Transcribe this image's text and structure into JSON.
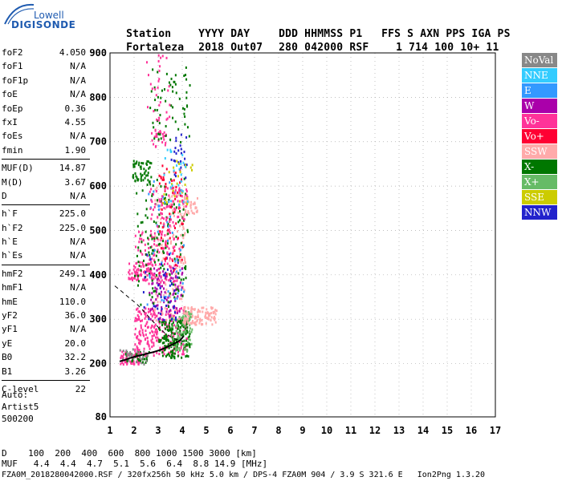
{
  "logo": {
    "top": "Lowell",
    "bottom": "DIGISONDE"
  },
  "header": {
    "row1": [
      "Station",
      "YYYY DAY",
      "DDD HHMMSS P1",
      "FFS S AXN PPS IGA PS"
    ],
    "row2": [
      "Fortaleza",
      "2018 Out07",
      "280 042000 RSF",
      "1 714 100 10+ 11"
    ]
  },
  "params": [
    {
      "label": "foF2",
      "value": "4.050"
    },
    {
      "label": "foF1",
      "value": "N/A"
    },
    {
      "label": "foF1p",
      "value": "N/A"
    },
    {
      "label": "foE",
      "value": "N/A"
    },
    {
      "label": "foEp",
      "value": "0.36"
    },
    {
      "label": "fxI",
      "value": "4.55"
    },
    {
      "label": "foEs",
      "value": "N/A"
    },
    {
      "label": "fmin",
      "value": "1.90"
    },
    {
      "label": "MUF(D)",
      "value": "14.87"
    },
    {
      "label": "M(D)",
      "value": "3.67"
    },
    {
      "label": "D",
      "value": "N/A"
    },
    {
      "label": "h`F",
      "value": "225.0"
    },
    {
      "label": "h`F2",
      "value": "225.0"
    },
    {
      "label": "h`E",
      "value": "N/A"
    },
    {
      "label": "h`Es",
      "value": "N/A"
    },
    {
      "label": "hmF2",
      "value": "249.1"
    },
    {
      "label": "hmF1",
      "value": "N/A"
    },
    {
      "label": "hmE",
      "value": "110.0"
    },
    {
      "label": "yF2",
      "value": "36.0"
    },
    {
      "label": "yF1",
      "value": "N/A"
    },
    {
      "label": "yE",
      "value": "20.0"
    },
    {
      "label": "B0",
      "value": "32.2"
    },
    {
      "label": "B1",
      "value": "3.26"
    },
    {
      "label": "C-level",
      "value": "22"
    }
  ],
  "auto": {
    "line1": "Auto:",
    "line2": "Artist5",
    "line3": "500200"
  },
  "legend": [
    {
      "label": "NoVal",
      "color": "#888888"
    },
    {
      "label": "NNE",
      "color": "#33ccff"
    },
    {
      "label": "E",
      "color": "#3399ff"
    },
    {
      "label": "W",
      "color": "#aa00aa"
    },
    {
      "label": "Vo-",
      "color": "#ff3399"
    },
    {
      "label": "Vo+",
      "color": "#ff0033"
    },
    {
      "label": "SSW",
      "color": "#ffaaaa"
    },
    {
      "label": "X-",
      "color": "#007700"
    },
    {
      "label": "X+",
      "color": "#66bb66"
    },
    {
      "label": "SSE",
      "color": "#cccc00"
    },
    {
      "label": "NNW",
      "color": "#2222cc"
    }
  ],
  "bottom": {
    "row1": "D    100  200  400  600  800 1000 1500 3000 [km]",
    "row2": "MUF   4.4  4.4  4.7  5.1  5.6  6.4  8.8 14.9 [MHz]",
    "footer": "FZA0M_2018280042000.RSF / 320fx256h 50 kHz 5.0 km / DPS-4 FZA0M 904 / 3.9 S 321.6 E   Ion2Png 1.3.20"
  },
  "chart_data": {
    "type": "scatter",
    "xlabel": "",
    "ylabel": "",
    "xlim": [
      1,
      17
    ],
    "ylim": [
      80,
      900
    ],
    "xticks": [
      1,
      2,
      3,
      4,
      5,
      6,
      7,
      8,
      9,
      10,
      11,
      12,
      13,
      14,
      15,
      16,
      17
    ],
    "yticks": [
      80,
      200,
      300,
      400,
      500,
      600,
      700,
      800,
      900
    ],
    "grid": true,
    "trace_main": {
      "name": "",
      "x": [
        1.4,
        1.6,
        1.8,
        2.0,
        2.2,
        2.5,
        2.8,
        3.1,
        3.4,
        3.7,
        3.9,
        4.0,
        4.05
      ],
      "y": [
        205,
        208,
        212,
        215,
        218,
        222,
        226,
        231,
        238,
        246,
        252,
        258,
        262
      ]
    },
    "profile_dashed": {
      "x": [
        1.2,
        1.5,
        1.8,
        2.1,
        2.4,
        2.7,
        3.0,
        3.3,
        3.6,
        3.9,
        4.05
      ],
      "y": [
        375,
        362,
        348,
        335,
        318,
        300,
        282,
        268,
        258,
        252,
        249
      ]
    },
    "clusters": [
      {
        "color": "#ff3399",
        "x": [
          1.4,
          2.2
        ],
        "y": [
          200,
          235
        ],
        "n": 70
      },
      {
        "color": "#007700",
        "x": [
          1.6,
          2.6
        ],
        "y": [
          205,
          230
        ],
        "n": 40
      },
      {
        "color": "#ff3399",
        "x": [
          2.0,
          4.2
        ],
        "y": [
          220,
          330
        ],
        "n": 260
      },
      {
        "color": "#007700",
        "x": [
          3.0,
          4.3
        ],
        "y": [
          215,
          300
        ],
        "n": 160
      },
      {
        "color": "#66bb66",
        "x": [
          3.5,
          4.4
        ],
        "y": [
          230,
          320
        ],
        "n": 80
      },
      {
        "color": "#ffaaaa",
        "x": [
          4.0,
          5.4
        ],
        "y": [
          290,
          330
        ],
        "n": 110
      },
      {
        "color": "#ffaaaa",
        "x": [
          2.8,
          4.1
        ],
        "y": [
          300,
          600
        ],
        "n": 170
      },
      {
        "color": "#aa00aa",
        "x": [
          2.6,
          4.0
        ],
        "y": [
          300,
          420
        ],
        "n": 90
      },
      {
        "color": "#ff3399",
        "x": [
          2.0,
          3.9
        ],
        "y": [
          380,
          500
        ],
        "n": 120
      },
      {
        "color": "#ff3399",
        "x": [
          1.7,
          2.8
        ],
        "y": [
          390,
          430
        ],
        "n": 60
      },
      {
        "color": "#007700",
        "x": [
          2.0,
          4.2
        ],
        "y": [
          330,
          620
        ],
        "n": 140
      },
      {
        "color": "#3399ff",
        "x": [
          2.5,
          4.2
        ],
        "y": [
          330,
          620
        ],
        "n": 50
      },
      {
        "color": "#2222cc",
        "x": [
          2.2,
          3.8
        ],
        "y": [
          300,
          450
        ],
        "n": 40
      },
      {
        "color": "#ff0033",
        "x": [
          3.0,
          4.0
        ],
        "y": [
          400,
          650
        ],
        "n": 60
      },
      {
        "color": "#ffaaaa",
        "x": [
          4.0,
          4.6
        ],
        "y": [
          540,
          580
        ],
        "n": 40
      },
      {
        "color": "#ff3399",
        "x": [
          2.6,
          4.2
        ],
        "y": [
          500,
          600
        ],
        "n": 70
      },
      {
        "color": "#007700",
        "x": [
          1.9,
          2.7
        ],
        "y": [
          610,
          660
        ],
        "n": 50
      },
      {
        "color": "#ff3399",
        "x": [
          2.7,
          3.3
        ],
        "y": [
          690,
          730
        ],
        "n": 30
      },
      {
        "color": "#007700",
        "x": [
          2.6,
          4.3
        ],
        "y": [
          700,
          870
        ],
        "n": 60
      },
      {
        "color": "#ff3399",
        "x": [
          2.5,
          3.5
        ],
        "y": [
          750,
          900
        ],
        "n": 30
      },
      {
        "color": "#2222cc",
        "x": [
          3.5,
          4.2
        ],
        "y": [
          620,
          720
        ],
        "n": 25
      },
      {
        "color": "#cccc00",
        "x": [
          3.0,
          4.4
        ],
        "y": [
          560,
          660
        ],
        "n": 25
      },
      {
        "color": "#33ccff",
        "x": [
          3.2,
          4.2
        ],
        "y": [
          560,
          700
        ],
        "n": 25
      },
      {
        "color": "#888888",
        "x": [
          1.3,
          2.5
        ],
        "y": [
          200,
          235
        ],
        "n": 25
      }
    ]
  }
}
